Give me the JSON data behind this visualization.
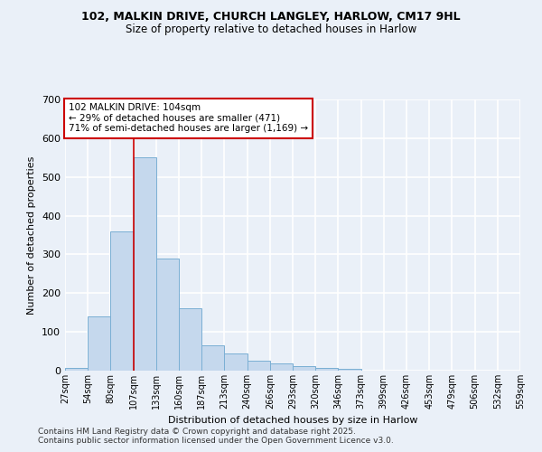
{
  "title1": "102, MALKIN DRIVE, CHURCH LANGLEY, HARLOW, CM17 9HL",
  "title2": "Size of property relative to detached houses in Harlow",
  "xlabel": "Distribution of detached houses by size in Harlow",
  "ylabel": "Number of detached properties",
  "bar_color": "#c5d8ed",
  "bar_edge_color": "#7aafd4",
  "bins": [
    "27sqm",
    "54sqm",
    "80sqm",
    "107sqm",
    "133sqm",
    "160sqm",
    "187sqm",
    "213sqm",
    "240sqm",
    "266sqm",
    "293sqm",
    "320sqm",
    "346sqm",
    "373sqm",
    "399sqm",
    "426sqm",
    "453sqm",
    "479sqm",
    "506sqm",
    "532sqm",
    "559sqm"
  ],
  "values": [
    8,
    140,
    360,
    550,
    290,
    160,
    65,
    45,
    25,
    18,
    12,
    8,
    4,
    0,
    0,
    0,
    0,
    0,
    0,
    0
  ],
  "ylim": [
    0,
    700
  ],
  "yticks": [
    0,
    100,
    200,
    300,
    400,
    500,
    600,
    700
  ],
  "annotation_text1": "102 MALKIN DRIVE: 104sqm",
  "annotation_text2": "← 29% of detached houses are smaller (471)",
  "annotation_text3": "71% of semi-detached houses are larger (1,169) →",
  "annotation_box_color": "#ffffff",
  "annotation_box_edge": "#cc0000",
  "vline_color": "#cc0000",
  "vline_x": 3,
  "footnote1": "Contains HM Land Registry data © Crown copyright and database right 2025.",
  "footnote2": "Contains public sector information licensed under the Open Government Licence v3.0.",
  "bg_color": "#eaf0f8",
  "grid_color": "#ffffff"
}
